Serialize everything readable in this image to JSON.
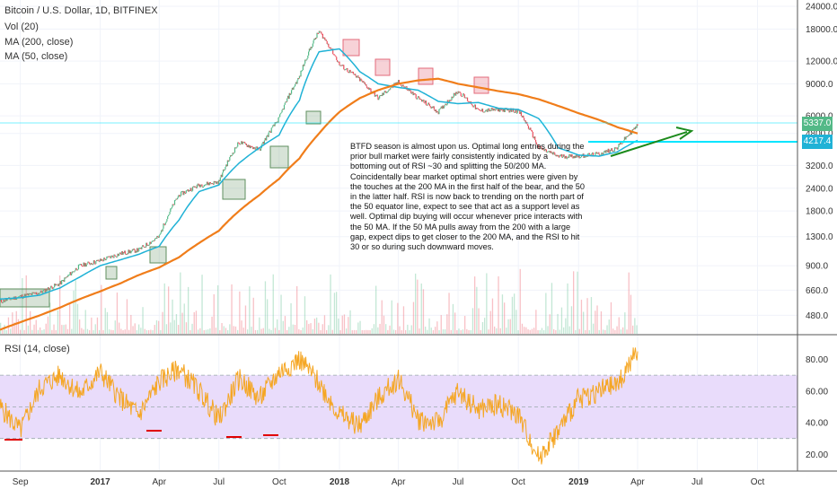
{
  "header": {
    "symbol": "Bitcoin / U.S. Dollar, 1D, BITFINEX",
    "ind_vol": "Vol (20)",
    "ind_ma200": "MA (200, close)",
    "ind_ma50": "MA (50, close)",
    "ind_rsi": "RSI (14, close)"
  },
  "annotation": {
    "text": "BTFD season is almost upon us.  Optimal long entries during the prior bull market were fairly consistently indicated by a bottoming out of RSI ~30 and splitting the 50/200 MA.  Coincidentally bear market optimal short entries were given by the touches at the 200 MA in the first half of the bear, and the 50 in the latter half.  RSI is now back to trending on the north part of the 50 equator line, expect to see that act as a support level as well.  Optimal dip buying will occur whenever price interacts with the 50 MA.  If the 50 MA pulls away from the 200 with a large gap, expect dips to get closer to the 200 MA, and the RSI to hit 30 or so during such downward moves."
  },
  "price_tags": {
    "last": "5337.0",
    "line": "4217.4"
  },
  "colors": {
    "up": "#53b987",
    "down": "#eb4d5c",
    "ma50": "#20b2d6",
    "ma200": "#f07d1a",
    "rsi_line": "#f5a623",
    "rsi_band": "#e9dcfb",
    "hline": "#00e5ff",
    "arrow": "#1b8a1b",
    "buy_box": "#5f8f5f",
    "sell_box": "#e36b7b",
    "rsi_low_mark": "#e00000"
  },
  "chart_data": [
    {
      "type": "line",
      "title": "Bitcoin / U.S. Dollar, 1D, BITFINEX",
      "y_scale": "log",
      "ylim": [
        380,
        26000
      ],
      "y_ticks": [
        "24000.0",
        "18000.0",
        "12000.0",
        "9000.0",
        "6000.0",
        "4800.0",
        "3200.0",
        "2400.0",
        "1800.0",
        "1300.0",
        "900.0",
        "660.0",
        "480.0"
      ],
      "x_ticks": [
        "Sep",
        "2017",
        "Apr",
        "Jul",
        "Oct",
        "2018",
        "Apr",
        "Jul",
        "Oct",
        "2019",
        "Apr",
        "Jul",
        "Oct"
      ],
      "x": [
        "2016-08",
        "2016-09",
        "2016-10",
        "2016-11",
        "2016-12",
        "2017-01",
        "2017-02",
        "2017-03",
        "2017-04",
        "2017-05",
        "2017-06",
        "2017-07",
        "2017-08",
        "2017-09",
        "2017-10",
        "2017-11",
        "2017-12",
        "2018-01",
        "2018-02",
        "2018-03",
        "2018-04",
        "2018-05",
        "2018-06",
        "2018-07",
        "2018-08",
        "2018-09",
        "2018-10",
        "2018-11",
        "2018-12",
        "2019-01",
        "2019-02",
        "2019-03",
        "2019-04"
      ],
      "series": [
        {
          "name": "Price",
          "values": [
            570,
            610,
            640,
            720,
            900,
            960,
            1050,
            1100,
            1300,
            2200,
            2500,
            2600,
            4300,
            3900,
            5800,
            9800,
            17500,
            11500,
            9500,
            7500,
            9200,
            7500,
            6300,
            8200,
            6400,
            6500,
            6400,
            4000,
            3600,
            3600,
            3700,
            4000,
            5300
          ]
        },
        {
          "name": "MA (50, close)",
          "values": [
            590,
            600,
            620,
            680,
            780,
            900,
            970,
            1040,
            1150,
            1600,
            2300,
            2500,
            3300,
            4000,
            4700,
            7300,
            13500,
            14000,
            10500,
            9000,
            8600,
            8300,
            7200,
            7000,
            7100,
            6600,
            6500,
            5800,
            4000,
            3650,
            3600,
            3800,
            4400
          ]
        },
        {
          "name": "MA (200, close)",
          "values": [
            400,
            440,
            480,
            530,
            590,
            650,
            720,
            800,
            880,
            1000,
            1200,
            1400,
            1800,
            2200,
            2700,
            3500,
            4800,
            6300,
            7500,
            8300,
            9000,
            9400,
            9600,
            9000,
            8600,
            8200,
            7900,
            7400,
            6800,
            6200,
            5700,
            5200,
            4800
          ]
        }
      ]
    },
    {
      "type": "line",
      "title": "RSI (14, close)",
      "ylim": [
        10,
        95
      ],
      "y_ticks": [
        "80.00",
        "60.00",
        "40.00",
        "20.00"
      ],
      "band": [
        30,
        70
      ],
      "series": [
        {
          "name": "RSI (14, close)",
          "values": [
            50,
            35,
            62,
            70,
            58,
            72,
            55,
            45,
            66,
            74,
            60,
            42,
            68,
            55,
            72,
            80,
            65,
            45,
            38,
            55,
            68,
            42,
            40,
            60,
            48,
            52,
            45,
            18,
            35,
            55,
            60,
            64,
            85
          ]
        }
      ]
    }
  ]
}
